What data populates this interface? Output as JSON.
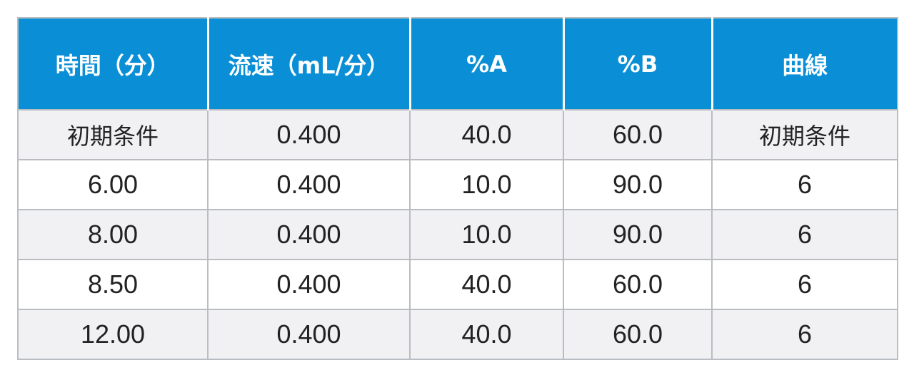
{
  "table": {
    "headers": [
      "時間（分）",
      "流速（mL/分）",
      "%A",
      "%B",
      "曲線"
    ],
    "rows": [
      [
        "初期条件",
        "0.400",
        "40.0",
        "60.0",
        "初期条件"
      ],
      [
        "6.00",
        "0.400",
        "10.0",
        "90.0",
        "6"
      ],
      [
        "8.00",
        "0.400",
        "10.0",
        "90.0",
        "6"
      ],
      [
        "8.50",
        "0.400",
        "40.0",
        "60.0",
        "6"
      ],
      [
        "12.00",
        "0.400",
        "40.0",
        "60.0",
        "6"
      ]
    ]
  },
  "colors": {
    "header_bg": "#0a8fd6",
    "header_text": "#ffffff",
    "row_alt_bg": "#f1f1f4",
    "border": "#b9bcc0"
  }
}
